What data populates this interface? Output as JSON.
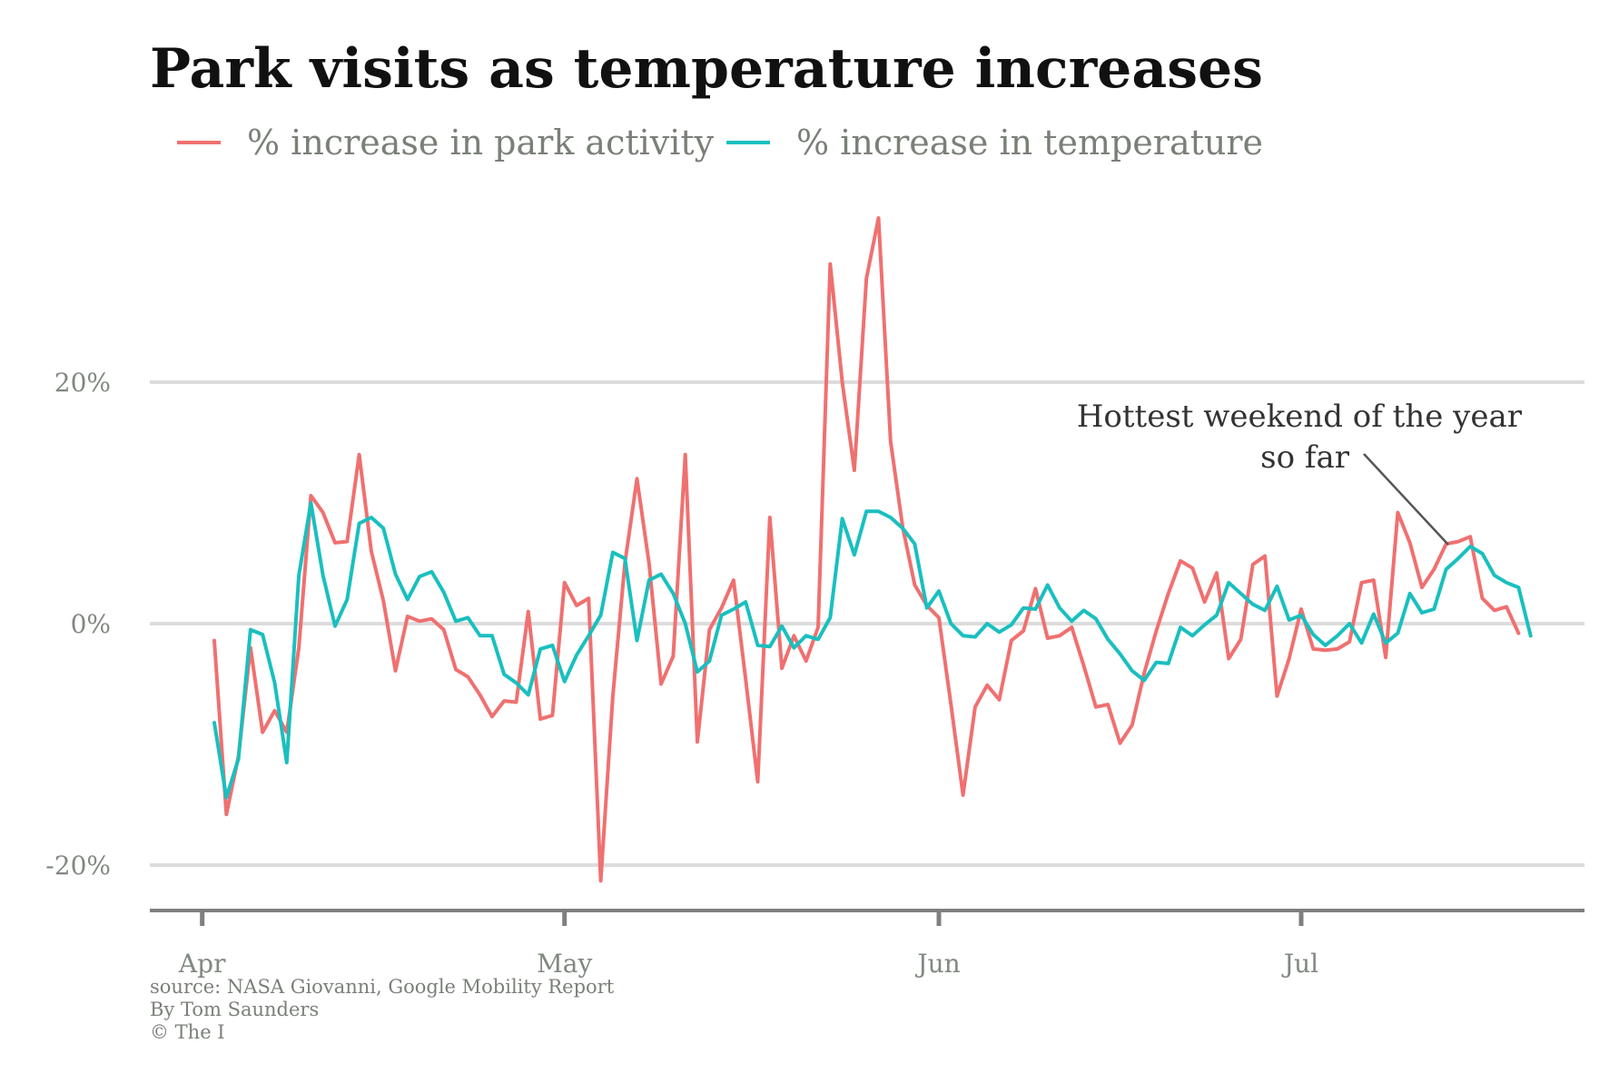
{
  "chart_data": {
    "type": "line",
    "title": "Park visits as temperature increases",
    "xlabel": "",
    "ylabel": "",
    "ylim": [
      -24,
      34
    ],
    "grid": true,
    "legend_position": "top",
    "x_ticks": [
      "Apr",
      "May",
      "Jun",
      "Jul"
    ],
    "y_ticks": [
      "-20%",
      "0%",
      "20%"
    ],
    "y_tick_values": [
      -20,
      0,
      20
    ],
    "x_start": "2020-04-02",
    "annotation": {
      "lines": [
        "Hottest weekend of the year",
        "so far"
      ],
      "date": "2020-07-16"
    },
    "series": [
      {
        "name": "% increase in park activity",
        "color": "#f07070",
        "values": [
          -1.4,
          -15.8,
          -11.0,
          -2.0,
          -9.0,
          -7.2,
          -9.0,
          -2.0,
          10.6,
          9.2,
          6.7,
          6.8,
          14.0,
          6.0,
          1.9,
          -3.9,
          0.6,
          0.2,
          0.4,
          -0.5,
          -3.8,
          -4.4,
          -5.9,
          -7.7,
          -6.4,
          -6.5,
          1.0,
          -7.9,
          -7.6,
          3.4,
          1.5,
          2.1,
          -21.3,
          -6.0,
          5.0,
          12.0,
          5.0,
          -5.0,
          -2.7,
          14.0,
          -9.8,
          -0.5,
          1.3,
          3.6,
          -4.6,
          -13.1,
          8.8,
          -3.7,
          -1.0,
          -3.1,
          -0.3,
          29.8,
          20.0,
          12.7,
          28.6,
          33.6,
          15.1,
          8.0,
          3.2,
          1.5,
          0.5,
          -6.7,
          -14.2,
          -6.9,
          -5.1,
          -6.3,
          -1.4,
          -0.6,
          2.9,
          -1.2,
          -1.0,
          -0.3,
          -3.5,
          -6.9,
          -6.7,
          -9.9,
          -8.4,
          -4.1,
          -0.6,
          2.5,
          5.2,
          4.6,
          1.8,
          4.2,
          -2.9,
          -1.3,
          4.9,
          5.6,
          -6.0,
          -2.9,
          1.2,
          -2.1,
          -2.2,
          -2.1,
          -1.5,
          3.4,
          3.6,
          -2.8,
          9.2,
          6.7,
          3.0,
          4.5,
          6.6,
          6.8,
          7.2,
          2.1,
          1.1,
          1.4,
          -0.8
        ],
        "start_index": 0
      },
      {
        "name": "% increase in temperature",
        "color": "#1abfbf",
        "values": [
          -8.2,
          -14.4,
          -11.2,
          -0.5,
          -0.9,
          -4.9,
          -11.5,
          4.0,
          10.0,
          4.0,
          -0.2,
          2.0,
          8.3,
          8.8,
          7.9,
          4.1,
          2.0,
          3.9,
          4.3,
          2.6,
          0.2,
          0.5,
          -1.0,
          -1.0,
          -4.2,
          -4.9,
          -5.9,
          -2.1,
          -1.8,
          -4.8,
          -2.6,
          -1.0,
          0.7,
          5.9,
          5.4,
          -1.4,
          3.6,
          4.1,
          2.5,
          0.0,
          -4.0,
          -3.1,
          0.7,
          1.2,
          1.8,
          -1.8,
          -1.9,
          -0.2,
          -2.0,
          -1.0,
          -1.3,
          0.5,
          8.7,
          5.7,
          9.3,
          9.3,
          8.8,
          7.9,
          6.6,
          1.3,
          2.7,
          0.0,
          -1.0,
          -1.1,
          0.0,
          -0.7,
          -0.1,
          1.3,
          1.2,
          3.2,
          1.3,
          0.2,
          1.1,
          0.4,
          -1.3,
          -2.5,
          -3.9,
          -4.7,
          -3.2,
          -3.3,
          -0.3,
          -1.0,
          -0.1,
          0.7,
          3.4,
          2.5,
          1.6,
          1.1,
          3.1,
          0.3,
          0.7,
          -0.9,
          -1.8,
          -1.0,
          0.0,
          -1.6,
          0.8,
          -1.6,
          -0.8,
          2.5,
          0.9,
          1.2,
          4.5,
          5.4,
          6.4,
          5.8,
          4.0,
          3.4,
          3.0,
          -1.0
        ],
        "start_index": 0
      }
    ]
  },
  "source": {
    "line1": "source: NASA Giovanni, Google Mobility Report",
    "line2": "By Tom Saunders",
    "line3": "© The I"
  }
}
